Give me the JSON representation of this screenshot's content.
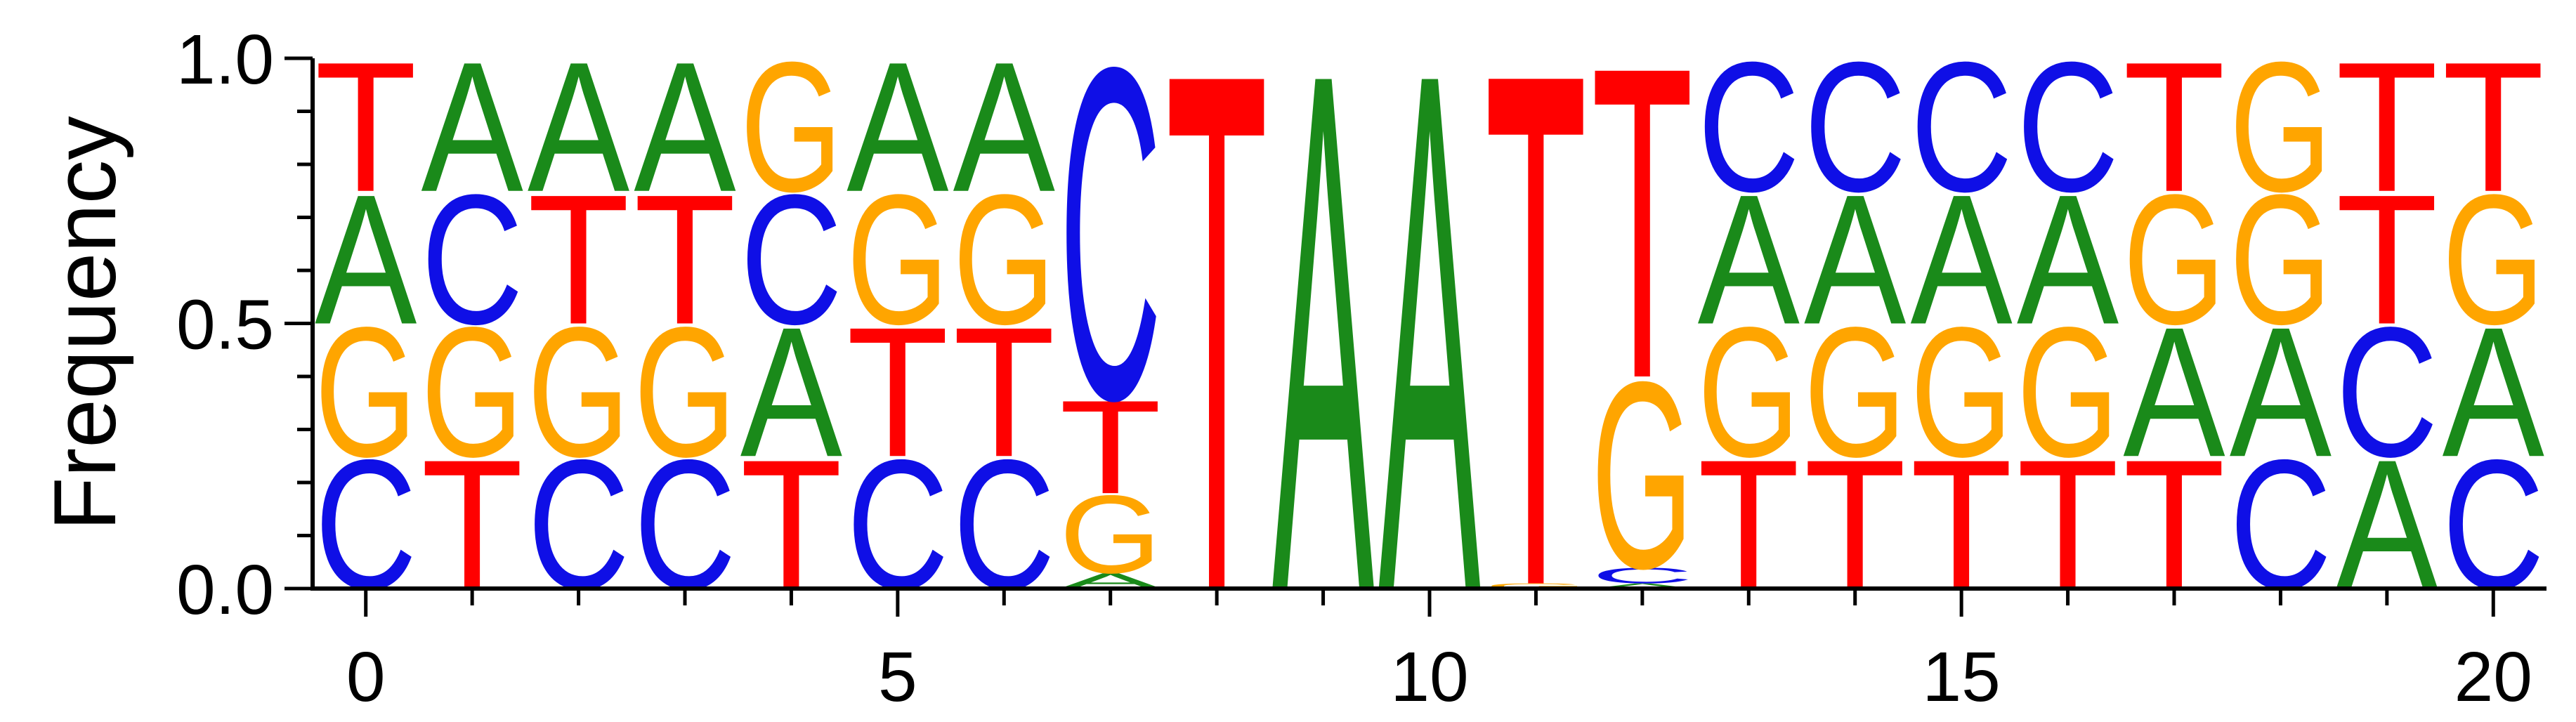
{
  "chart_data": {
    "type": "sequence-logo",
    "title": "",
    "xlabel": "",
    "ylabel": "Frequency",
    "xlim": [
      -0.5,
      20.5
    ],
    "ylim": [
      0,
      1
    ],
    "x_ticks": [
      0,
      5,
      10,
      15,
      20
    ],
    "x_tick_labels": [
      "0",
      "5",
      "10",
      "15",
      "20"
    ],
    "y_ticks": [
      0,
      0.5,
      1
    ],
    "y_tick_labels": [
      "0.0",
      "0.5",
      "1.0"
    ],
    "grid": false,
    "colors": {
      "A": "#1a8a1a",
      "C": "#0f0fe6",
      "G": "#ffa500",
      "T": "#ff0000"
    },
    "positions": [
      {
        "x": 0,
        "stack": [
          [
            "C",
            0.25
          ],
          [
            "G",
            0.25
          ],
          [
            "A",
            0.25
          ],
          [
            "T",
            0.25
          ]
        ]
      },
      {
        "x": 1,
        "stack": [
          [
            "T",
            0.25
          ],
          [
            "G",
            0.25
          ],
          [
            "C",
            0.25
          ],
          [
            "A",
            0.25
          ]
        ]
      },
      {
        "x": 2,
        "stack": [
          [
            "C",
            0.25
          ],
          [
            "G",
            0.25
          ],
          [
            "T",
            0.25
          ],
          [
            "A",
            0.25
          ]
        ]
      },
      {
        "x": 3,
        "stack": [
          [
            "C",
            0.25
          ],
          [
            "G",
            0.25
          ],
          [
            "T",
            0.25
          ],
          [
            "A",
            0.25
          ]
        ]
      },
      {
        "x": 4,
        "stack": [
          [
            "T",
            0.25
          ],
          [
            "A",
            0.25
          ],
          [
            "C",
            0.25
          ],
          [
            "G",
            0.25
          ]
        ]
      },
      {
        "x": 5,
        "stack": [
          [
            "C",
            0.25
          ],
          [
            "T",
            0.25
          ],
          [
            "G",
            0.25
          ],
          [
            "A",
            0.25
          ]
        ]
      },
      {
        "x": 6,
        "stack": [
          [
            "C",
            0.25
          ],
          [
            "T",
            0.25
          ],
          [
            "G",
            0.25
          ],
          [
            "A",
            0.25
          ]
        ]
      },
      {
        "x": 7,
        "stack": [
          [
            "A",
            0.03
          ],
          [
            "G",
            0.15
          ],
          [
            "T",
            0.18
          ],
          [
            "C",
            0.64
          ]
        ]
      },
      {
        "x": 8,
        "stack": [
          [
            "T",
            1.0
          ]
        ]
      },
      {
        "x": 9,
        "stack": [
          [
            "A",
            1.0
          ]
        ]
      },
      {
        "x": 10,
        "stack": [
          [
            "A",
            1.0
          ]
        ]
      },
      {
        "x": 11,
        "stack": [
          [
            "G",
            0.01
          ],
          [
            "T",
            0.99
          ]
        ]
      },
      {
        "x": 12,
        "stack": [
          [
            "A",
            0.01
          ],
          [
            "C",
            0.03
          ],
          [
            "G",
            0.36
          ],
          [
            "T",
            0.6
          ]
        ]
      },
      {
        "x": 13,
        "stack": [
          [
            "T",
            0.25
          ],
          [
            "G",
            0.25
          ],
          [
            "A",
            0.25
          ],
          [
            "C",
            0.25
          ]
        ]
      },
      {
        "x": 14,
        "stack": [
          [
            "T",
            0.25
          ],
          [
            "G",
            0.25
          ],
          [
            "A",
            0.25
          ],
          [
            "C",
            0.25
          ]
        ]
      },
      {
        "x": 15,
        "stack": [
          [
            "T",
            0.25
          ],
          [
            "G",
            0.25
          ],
          [
            "A",
            0.25
          ],
          [
            "C",
            0.25
          ]
        ]
      },
      {
        "x": 16,
        "stack": [
          [
            "T",
            0.25
          ],
          [
            "G",
            0.25
          ],
          [
            "A",
            0.25
          ],
          [
            "C",
            0.25
          ]
        ]
      },
      {
        "x": 17,
        "stack": [
          [
            "T",
            0.25
          ],
          [
            "A",
            0.25
          ],
          [
            "G",
            0.25
          ],
          [
            "T",
            0.25
          ]
        ]
      },
      {
        "x": 18,
        "stack": [
          [
            "C",
            0.25
          ],
          [
            "A",
            0.25
          ],
          [
            "G",
            0.25
          ],
          [
            "G",
            0.25
          ]
        ]
      },
      {
        "x": 19,
        "stack": [
          [
            "A",
            0.25
          ],
          [
            "C",
            0.25
          ],
          [
            "T",
            0.25
          ],
          [
            "T",
            0.25
          ]
        ]
      },
      {
        "x": 20,
        "stack": [
          [
            "C",
            0.25
          ],
          [
            "A",
            0.25
          ],
          [
            "G",
            0.25
          ],
          [
            "T",
            0.25
          ]
        ]
      }
    ]
  }
}
